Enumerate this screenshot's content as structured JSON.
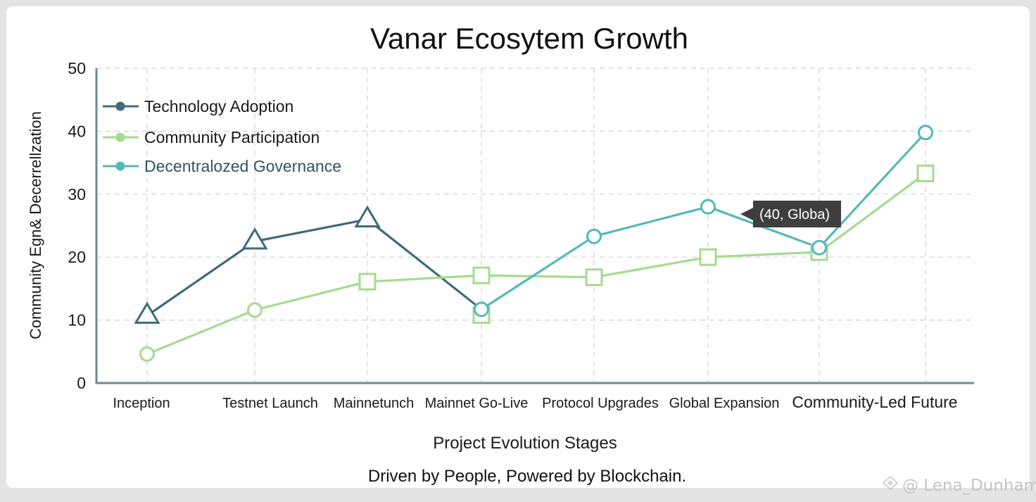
{
  "chart_data": {
    "type": "line",
    "title": "Vanar Ecosytem Growth",
    "xlabel": "Project Evolution Stages",
    "ylabel": "Community Egn& Decerrellzation",
    "caption": "Driven by People, Powered by Blockchain.",
    "ylim": [
      0,
      50
    ],
    "yticks": [
      0,
      10,
      20,
      30,
      40,
      50
    ],
    "grid": true,
    "legend_position": "top-left",
    "categories": [
      "Inception",
      "Testnet Launch",
      "Mainnetunch",
      "Mainnet Go-Live",
      "Protocol Upgrades",
      "Global Expansion",
      "Community-Led Future"
    ],
    "series": [
      {
        "name": "Technology Adoption",
        "color": "#3f6b7a",
        "points": [
          {
            "stage": "Inception",
            "value": 10.7,
            "marker": "triangle"
          },
          {
            "stage": "Testnet Launch",
            "value": 22.5,
            "marker": "triangle"
          },
          {
            "stage": "Mainnetunch",
            "value": 26,
            "marker": "triangle"
          },
          {
            "stage": "Mainnet Go-Live",
            "value": 11.7,
            "marker": "none"
          }
        ]
      },
      {
        "name": "Community Participation",
        "color": "#a5db8f",
        "points": [
          {
            "stage": "Inception",
            "value": 4.6,
            "marker": "circle"
          },
          {
            "stage": "Testnet Launch",
            "value": 11.6,
            "marker": "circle"
          },
          {
            "stage": "Mainnetunch",
            "value": 16.1,
            "marker": "square"
          },
          {
            "stage": "Mainnet Go-Live",
            "value": 17.1,
            "marker": "square"
          },
          {
            "stage": "Protocol Upgrades",
            "value": 16.8,
            "marker": "square"
          },
          {
            "stage": "Global Expansion",
            "value": 20,
            "marker": "square"
          },
          {
            "stage": "Community-Led Future",
            "value": 20.8,
            "marker": "square"
          },
          {
            "stage": "Community-Led Future",
            "value": 33.3,
            "marker": "square"
          }
        ]
      },
      {
        "name": "Decentralozed Governance",
        "color": "#56b8b8",
        "points": [
          {
            "stage": "Mainnet Go-Live",
            "value": 11.7,
            "marker": "circle"
          },
          {
            "stage": "Protocol Upgrades",
            "value": 23.3,
            "marker": "circle"
          },
          {
            "stage": "Global Expansion",
            "value": 28,
            "marker": "circle"
          },
          {
            "stage": "Community-Led Future",
            "value": 21.5,
            "marker": "circle"
          },
          {
            "stage": "Community-Led Future",
            "value": 39.8,
            "marker": "circle"
          }
        ]
      }
    ],
    "extra_markers": [
      {
        "stage": "Mainnet Go-Live",
        "value": 10.8,
        "marker": "square",
        "color": "#a5db8f"
      }
    ],
    "tooltip": {
      "text": "(40, Globa)",
      "stage": "Global Expansion",
      "value": 28
    }
  },
  "watermark": {
    "text": "@ Lena_Dunham"
  }
}
